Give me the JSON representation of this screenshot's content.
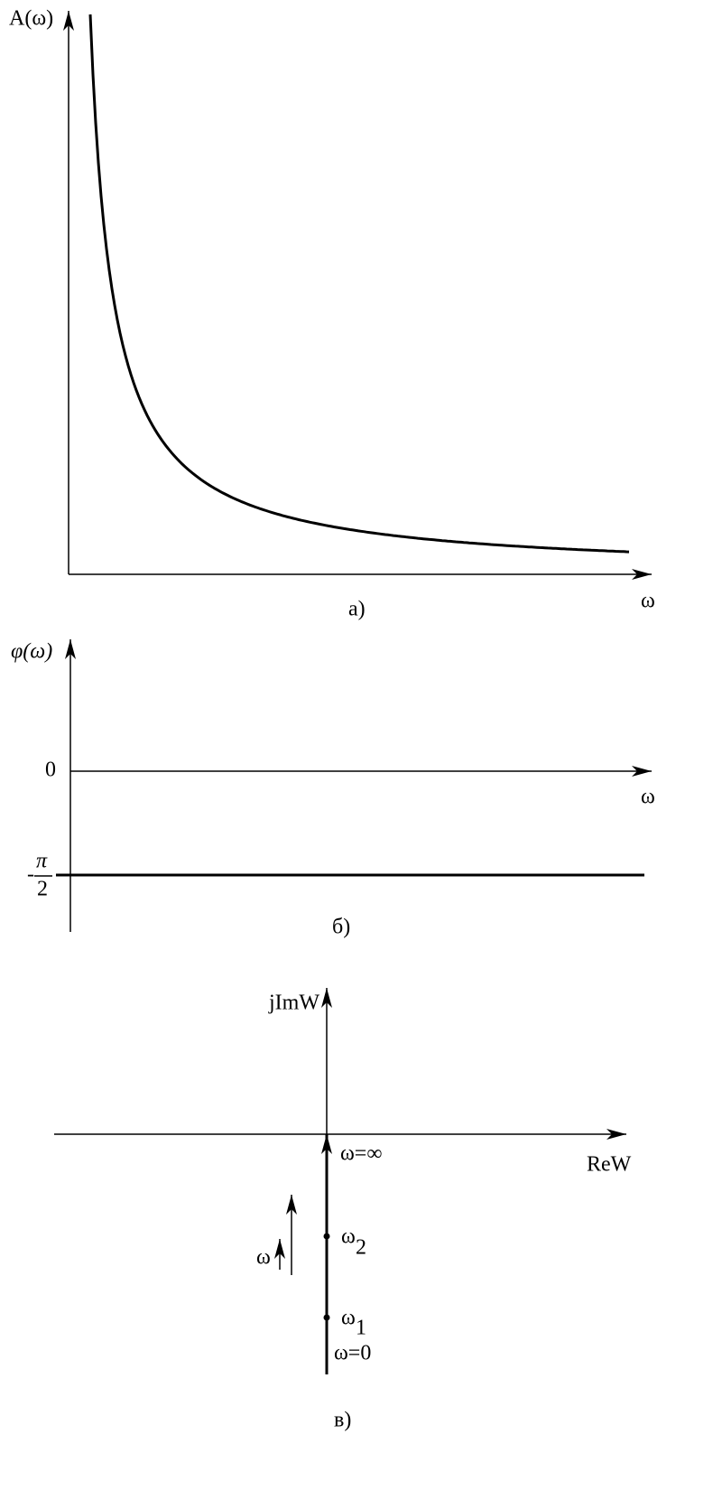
{
  "panels": [
    {
      "caption": "а)",
      "y_axis_label": "A(ω)",
      "x_axis_label": "ω"
    },
    {
      "caption": "б)",
      "y_axis_label": "φ(ω)",
      "x_axis_label": "ω",
      "zero_label": "0",
      "level_label": {
        "sign": "-",
        "numerator": "π",
        "denominator": "2"
      }
    },
    {
      "caption": "в)",
      "y_axis_label": "jImW",
      "x_axis_label": "ReW",
      "infinity_label": "ω=∞",
      "point_2_label": {
        "symbol": "ω",
        "subscript": "2"
      },
      "point_1_label": {
        "symbol": "ω",
        "subscript": "1"
      },
      "zero_label": "ω=0",
      "direction_label": "ω"
    }
  ]
}
